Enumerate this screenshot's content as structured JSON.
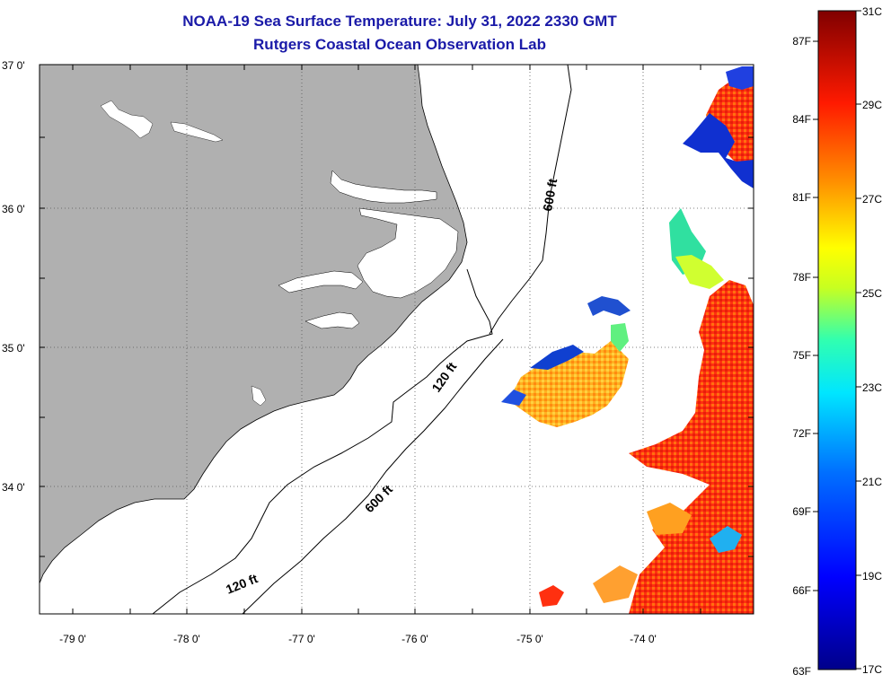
{
  "header": {
    "title": "NOAA-19 Sea Surface Temperature:  July 31, 2022 2330 GMT",
    "subtitle": "Rutgers Coastal Ocean Observation Lab"
  },
  "map": {
    "lat_labels": [
      "37 0'",
      "36 0'",
      "35 0'",
      "34 0'"
    ],
    "lon_labels": [
      "-79 0'",
      "-78 0'",
      "-77 0'",
      "-76 0'",
      "-75 0'",
      "-74 0'"
    ],
    "isobaths": [
      {
        "id": "iso-600-north",
        "label": "600 ft"
      },
      {
        "id": "iso-120-mid",
        "label": "120 ft"
      },
      {
        "id": "iso-600-south",
        "label": "600 ft"
      },
      {
        "id": "iso-120-south",
        "label": "120 ft"
      }
    ],
    "land_color": "#b0b0b0"
  },
  "colorbar": {
    "fahrenheit_labels": [
      "87F",
      "84F",
      "81F",
      "78F",
      "75F",
      "72F",
      "69F",
      "66F",
      "63F"
    ],
    "celsius_labels": [
      "31C",
      "29C",
      "27C",
      "25C",
      "23C",
      "21C",
      "19C",
      "17C"
    ],
    "colors": [
      "#800000",
      "#ff0000",
      "#ff8000",
      "#ffff00",
      "#00ffff",
      "#0000ff",
      "#000080"
    ]
  }
}
